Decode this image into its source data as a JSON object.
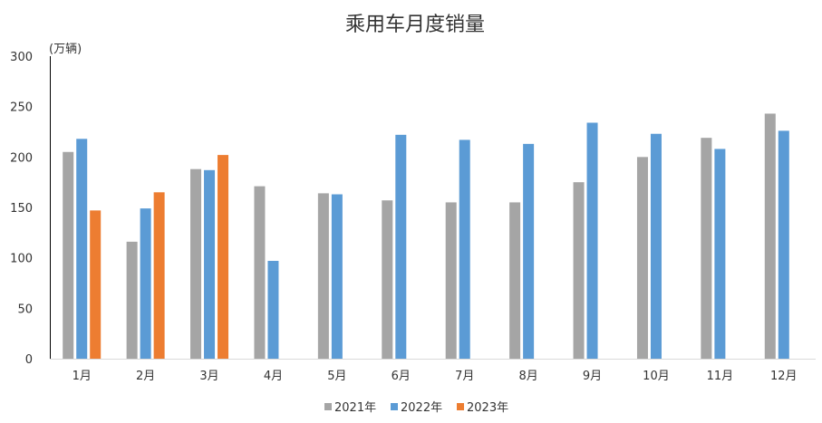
{
  "chart_data": {
    "type": "bar",
    "title": "乘用车月度销量",
    "ylabel": "(万辆)",
    "xlabel": "",
    "ylim": [
      0,
      300
    ],
    "yticks": [
      0,
      50,
      100,
      150,
      200,
      250,
      300
    ],
    "grid": false,
    "legend_position": "bottom",
    "categories": [
      "1月",
      "2月",
      "3月",
      "4月",
      "5月",
      "6月",
      "7月",
      "8月",
      "9月",
      "10月",
      "11月",
      "12月"
    ],
    "series": [
      {
        "name": "2021年",
        "color": "#a5a5a5",
        "values": [
          205,
          116,
          188,
          171,
          164,
          157,
          155,
          155,
          175,
          200,
          219,
          243
        ]
      },
      {
        "name": "2022年",
        "color": "#5b9bd5",
        "values": [
          218,
          149,
          187,
          97,
          163,
          222,
          217,
          213,
          234,
          223,
          208,
          226
        ]
      },
      {
        "name": "2023年",
        "color": "#ed7d31",
        "values": [
          147,
          165,
          202,
          null,
          null,
          null,
          null,
          null,
          null,
          null,
          null,
          null
        ]
      }
    ]
  }
}
